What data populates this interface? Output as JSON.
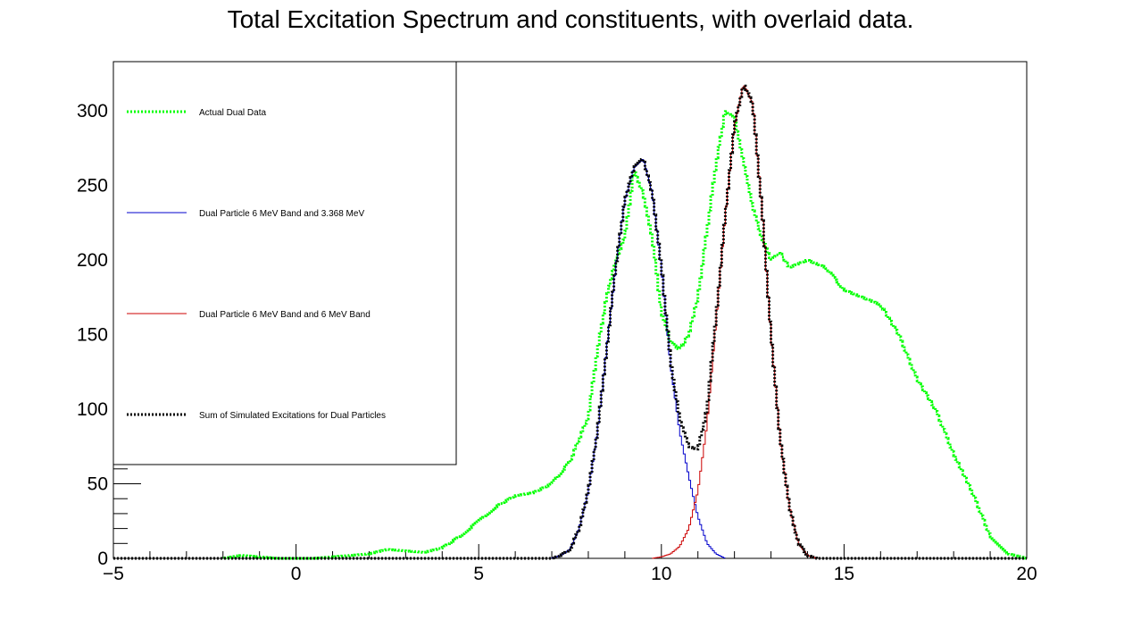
{
  "chart_data": {
    "type": "line",
    "title": "Total Excitation Spectrum and constituents, with overlaid data.",
    "xlabel": "",
    "ylabel": "",
    "xlim": [
      -5,
      20
    ],
    "ylim": [
      0,
      333
    ],
    "x_ticks": [
      -5,
      0,
      5,
      10,
      15,
      20
    ],
    "y_ticks": [
      0,
      50,
      100,
      150,
      200,
      250,
      300
    ],
    "grid": false,
    "legend_position": "top-left",
    "series": [
      {
        "name": "Actual Dual Data",
        "color": "#00ff00",
        "style": "dotted",
        "x": [
          -5,
          -2,
          -1.5,
          -1,
          -0.5,
          0,
          0.5,
          1,
          1.5,
          2,
          2.5,
          3,
          3.5,
          4,
          4.5,
          5,
          5.5,
          6,
          6.5,
          7,
          7.5,
          8,
          8.25,
          8.5,
          8.75,
          9,
          9.25,
          9.5,
          9.75,
          10,
          10.25,
          10.5,
          10.75,
          11,
          11.25,
          11.5,
          11.75,
          12,
          12.25,
          12.5,
          12.75,
          13,
          13.25,
          13.5,
          14,
          14.5,
          15,
          15.5,
          16,
          16.5,
          17,
          17.5,
          18,
          18.5,
          19,
          19.5,
          20
        ],
        "y": [
          0,
          0,
          2,
          1,
          0,
          0,
          0,
          1,
          2,
          3,
          6,
          5,
          4,
          7,
          15,
          25,
          35,
          42,
          44,
          50,
          65,
          95,
          140,
          175,
          200,
          215,
          260,
          245,
          215,
          165,
          145,
          140,
          150,
          175,
          220,
          265,
          300,
          295,
          265,
          235,
          215,
          200,
          205,
          195,
          200,
          195,
          180,
          175,
          170,
          150,
          120,
          100,
          70,
          45,
          15,
          3,
          0
        ]
      },
      {
        "name": "Dual Particle 6 MeV Band and 3.368 MeV",
        "color": "#0000cc",
        "style": "solid",
        "x": [
          7,
          7.25,
          7.5,
          7.75,
          8,
          8.25,
          8.5,
          8.75,
          9,
          9.25,
          9.5,
          9.75,
          10,
          10.25,
          10.5,
          10.75,
          11,
          11.25,
          11.5,
          11.75
        ],
        "y": [
          0,
          2,
          6,
          20,
          45,
          85,
          140,
          195,
          240,
          262,
          268,
          245,
          195,
          130,
          85,
          55,
          28,
          10,
          3,
          0
        ]
      },
      {
        "name": "Dual Particle 6 MeV Band and 6 MeV Band",
        "color": "#cc0000",
        "style": "solid",
        "x": [
          9.75,
          10,
          10.25,
          10.5,
          10.75,
          11,
          11.25,
          11.5,
          11.75,
          12,
          12.25,
          12.5,
          12.75,
          13,
          13.25,
          13.5,
          13.75,
          14,
          14.25
        ],
        "y": [
          0,
          1,
          3,
          8,
          20,
          45,
          90,
          160,
          230,
          290,
          318,
          305,
          235,
          150,
          80,
          35,
          10,
          2,
          0
        ]
      },
      {
        "name": "Sum of Simulated Excitations for Dual Particles",
        "color": "#000000",
        "style": "dotted",
        "x": [
          -5,
          7,
          7.25,
          7.5,
          7.75,
          8,
          8.25,
          8.5,
          8.75,
          9,
          9.25,
          9.5,
          9.75,
          10,
          10.25,
          10.5,
          10.75,
          11,
          11.25,
          11.5,
          11.75,
          12,
          12.25,
          12.5,
          12.75,
          13,
          13.25,
          13.5,
          13.75,
          14,
          14.25,
          20
        ],
        "y": [
          0,
          0,
          2,
          6,
          20,
          45,
          85,
          140,
          195,
          240,
          262,
          268,
          245,
          196,
          133,
          93,
          75,
          73,
          100,
          163,
          230,
          290,
          318,
          305,
          235,
          150,
          80,
          35,
          10,
          2,
          0,
          0
        ]
      }
    ]
  }
}
